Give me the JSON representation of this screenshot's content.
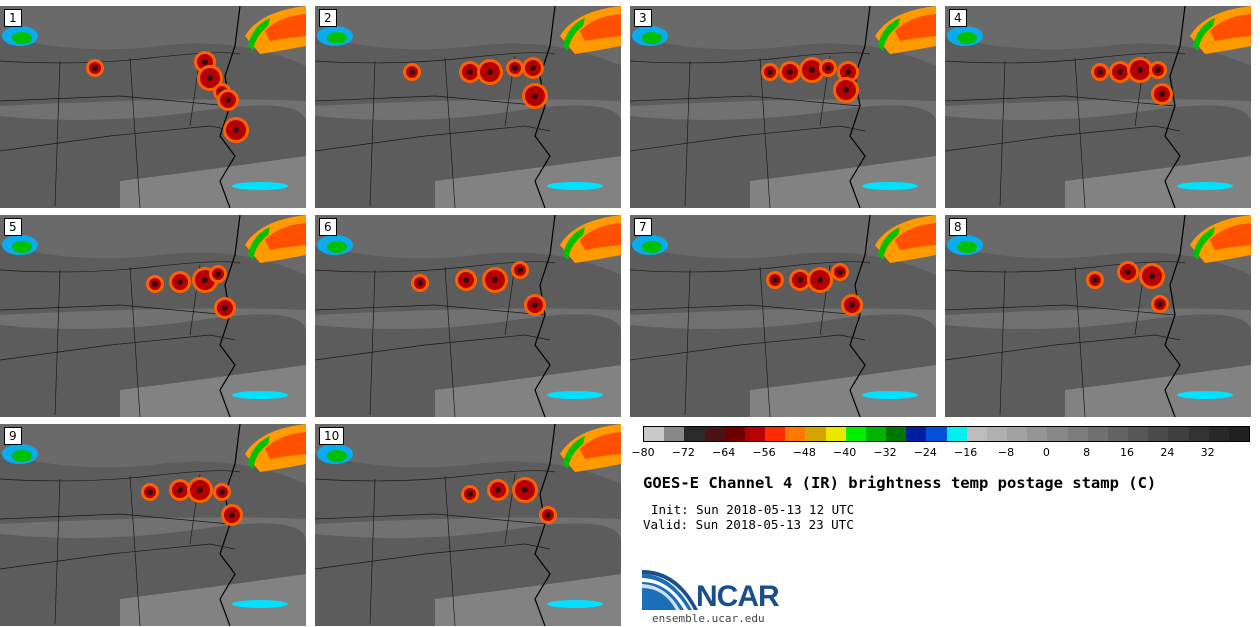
{
  "panels": [
    {
      "label": "1"
    },
    {
      "label": "2"
    },
    {
      "label": "3"
    },
    {
      "label": "4"
    },
    {
      "label": "5"
    },
    {
      "label": "6"
    },
    {
      "label": "7"
    },
    {
      "label": "8"
    },
    {
      "label": "9"
    },
    {
      "label": "10"
    }
  ],
  "colorbar": {
    "colors": [
      "#c9c9c9",
      "#888888",
      "#2a2a2a",
      "#4a1414",
      "#6e0000",
      "#b40000",
      "#ff2a00",
      "#ff7800",
      "#d6a400",
      "#e8e800",
      "#00f000",
      "#00b400",
      "#007800",
      "#001ea0",
      "#0050dc",
      "#00f0f0",
      "#bcbcbc",
      "#b0b0b0",
      "#a2a2a2",
      "#959595",
      "#888888",
      "#7c7c7c",
      "#707070",
      "#636363",
      "#575757",
      "#4b4b4b",
      "#3f3f3f",
      "#333333",
      "#292929",
      "#202020"
    ],
    "ticks": [
      "−80",
      "−72",
      "−64",
      "−56",
      "−48",
      "−40",
      "−32",
      "−24",
      "−16",
      "−8",
      "0",
      "8",
      "16",
      "24",
      "32"
    ]
  },
  "title": "GOES-E Channel 4 (IR) brightness temp postage stamp (C)",
  "init": "Init: Sun 2018-05-13 12 UTC",
  "valid": "Valid: Sun 2018-05-13 23 UTC",
  "logo": {
    "name": "NCAR",
    "site": "ensemble.ucar.edu"
  }
}
